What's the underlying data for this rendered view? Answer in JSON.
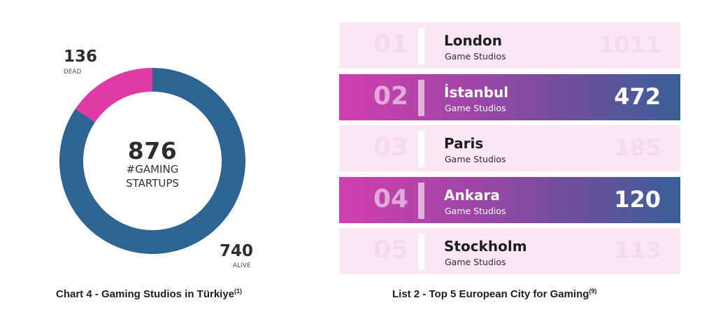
{
  "chart_data": [
    {
      "type": "pie",
      "variant": "donut",
      "center_value": "876",
      "center_label_lines": [
        "#GAMING",
        "STARTUPS"
      ],
      "slices": [
        {
          "label": "DEAD",
          "value": 136,
          "color": "#e03aa6"
        },
        {
          "label": "ALIVE",
          "value": 740,
          "color": "#2d6492"
        }
      ],
      "caption": "Chart 4 - Gaming Studios in Türkiye",
      "caption_ref": "(1)"
    },
    {
      "type": "table",
      "caption": "List 2 - Top 5 European City for Gaming",
      "caption_ref": "(9)",
      "rows": [
        {
          "rank": "01",
          "city": "London",
          "sub": "Game Studios",
          "value": "1011",
          "highlight": false
        },
        {
          "rank": "02",
          "city": "İstanbul",
          "sub": "Game Studios",
          "value": "472",
          "highlight": true
        },
        {
          "rank": "03",
          "city": "Paris",
          "sub": "Game Studios",
          "value": "185",
          "highlight": false
        },
        {
          "rank": "04",
          "city": "Ankara",
          "sub": "Game Studios",
          "value": "120",
          "highlight": true
        },
        {
          "rank": "05",
          "city": "Stockholm",
          "sub": "Game Studios",
          "value": "113",
          "highlight": false
        }
      ]
    }
  ]
}
